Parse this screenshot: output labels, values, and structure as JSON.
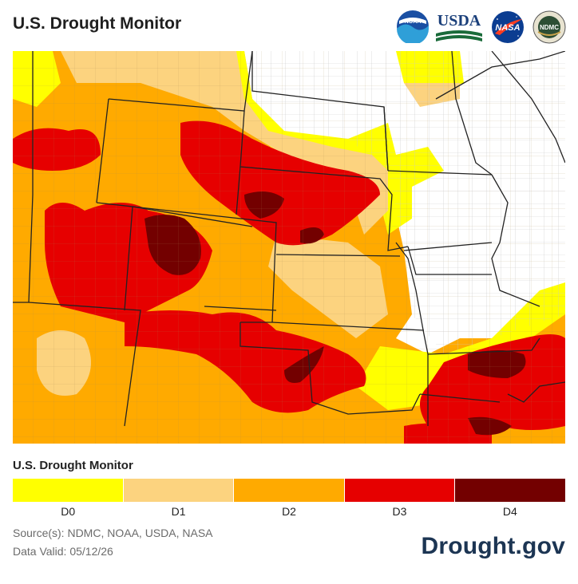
{
  "header": {
    "title": "U.S. Drought Monitor",
    "logos": {
      "noaa": {
        "icon": "noaa-logo",
        "text": "NOAA"
      },
      "usda": {
        "icon": "usda-logo",
        "text": "USDA"
      },
      "nasa": {
        "icon": "nasa-logo",
        "text": "NASA"
      },
      "ndmc": {
        "icon": "ndmc-logo",
        "text": "NDMC"
      }
    }
  },
  "map": {
    "description_colors": {
      "none": "#ffffff",
      "D0": "#ffff00",
      "D1": "#fcd37f",
      "D2": "#ffaa00",
      "D3": "#e60000",
      "D4": "#730000"
    }
  },
  "legend": {
    "title": "U.S. Drought Monitor",
    "categories": [
      {
        "label": "D0",
        "color": "#ffff00"
      },
      {
        "label": "D1",
        "color": "#fcd37f"
      },
      {
        "label": "D2",
        "color": "#ffaa00"
      },
      {
        "label": "D3",
        "color": "#e60000"
      },
      {
        "label": "D4",
        "color": "#730000"
      }
    ]
  },
  "footer": {
    "source": "Source(s): NDMC, NOAA, USDA, NASA",
    "valid": "Data Valid: 05/12/26",
    "brand": "Drought.gov"
  }
}
